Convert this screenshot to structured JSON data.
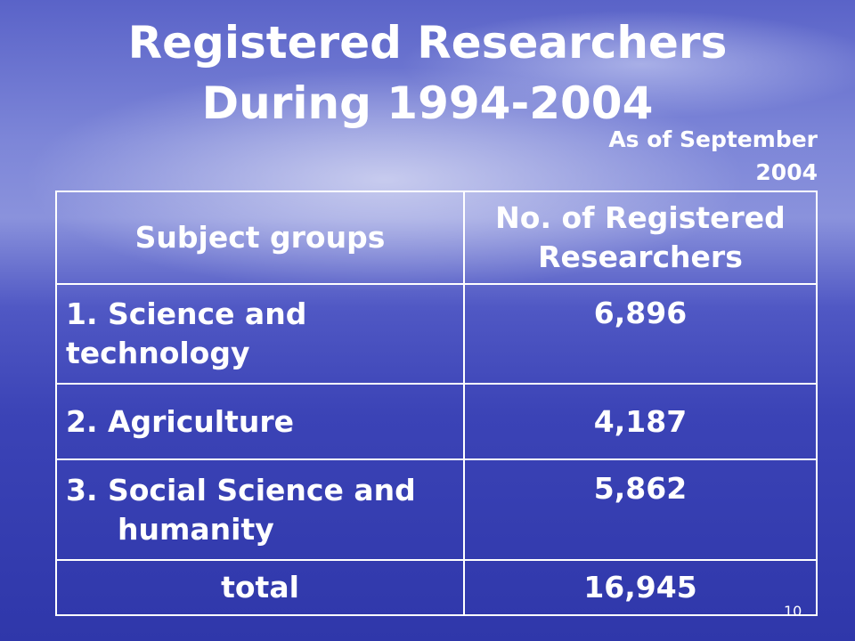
{
  "header": {
    "title_lines": [
      "Registered Researchers",
      "During 1994-2004"
    ],
    "subtitle": "As of September 2004"
  },
  "table": {
    "header": [
      "Subject  groups",
      "No. of Registered Researchers"
    ],
    "rows": [
      [
        "1. Science and technology",
        "6,896"
      ],
      [
        "2. Agriculture",
        "4,187"
      ],
      [
        "3. Social Science and humanity",
        "5,862"
      ],
      [
        "total",
        "16,945"
      ]
    ]
  },
  "footer": {
    "page_number": "10"
  }
}
